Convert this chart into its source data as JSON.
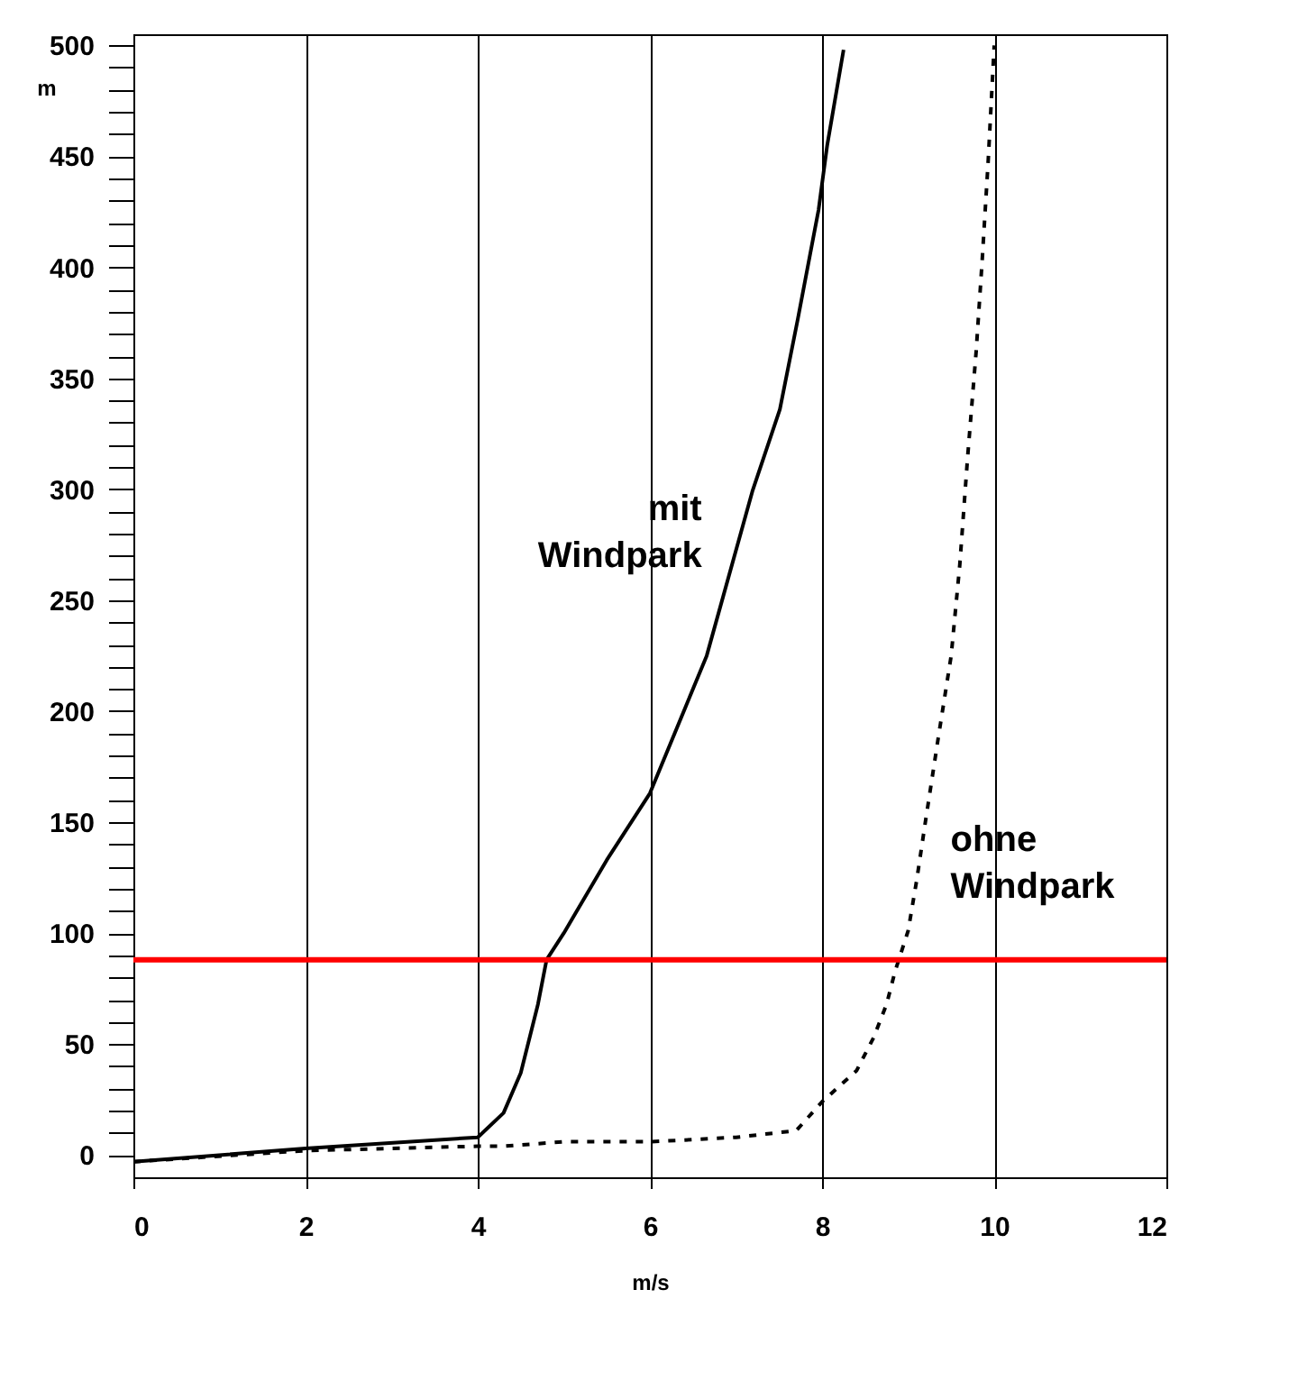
{
  "chart_data": {
    "type": "line",
    "xlabel": "m/s",
    "ylabel": "m",
    "xlim": [
      0,
      12
    ],
    "xticks": [
      0,
      2,
      4,
      6,
      8,
      10,
      12
    ],
    "ylim": [
      -10,
      505
    ],
    "yticks": [
      0,
      {
        "value": 10,
        "label": null
      },
      {
        "value": 20,
        "label": null
      },
      {
        "value": 30,
        "label": null
      },
      {
        "value": 40,
        "label": null
      },
      50,
      {
        "value": 60,
        "label": null
      },
      {
        "value": 70,
        "label": null
      },
      {
        "value": 80,
        "label": null
      },
      {
        "value": 90,
        "label": null
      },
      100,
      {
        "value": 110,
        "label": null
      },
      {
        "value": 120,
        "label": null
      },
      {
        "value": 130,
        "label": null
      },
      {
        "value": 140,
        "label": null
      },
      150,
      {
        "value": 160,
        "label": null
      },
      {
        "value": 170,
        "label": null
      },
      {
        "value": 180,
        "label": null
      },
      {
        "value": 190,
        "label": null
      },
      200,
      {
        "value": 210,
        "label": null
      },
      {
        "value": 220,
        "label": null
      },
      {
        "value": 230,
        "label": null
      },
      {
        "value": 240,
        "label": null
      },
      250,
      {
        "value": 260,
        "label": null
      },
      {
        "value": 270,
        "label": null
      },
      {
        "value": 280,
        "label": null
      },
      {
        "value": 290,
        "label": null
      },
      300,
      {
        "value": 310,
        "label": null
      },
      {
        "value": 320,
        "label": null
      },
      {
        "value": 330,
        "label": null
      },
      {
        "value": 340,
        "label": null
      },
      350,
      {
        "value": 360,
        "label": null
      },
      {
        "value": 370,
        "label": null
      },
      {
        "value": 380,
        "label": null
      },
      {
        "value": 390,
        "label": null
      },
      400,
      {
        "value": 410,
        "label": null
      },
      {
        "value": 420,
        "label": null
      },
      {
        "value": 430,
        "label": null
      },
      {
        "value": 440,
        "label": null
      },
      450,
      {
        "value": 460,
        "label": null
      },
      {
        "value": 470,
        "label": null
      },
      {
        "value": 480,
        "label": null
      },
      {
        "value": 490,
        "label": null
      },
      500
    ],
    "grid": "x",
    "marker": "none",
    "series": [
      {
        "name": "mit Windpark",
        "color": "#000000",
        "line_style": "solid",
        "x": [
          0,
          2,
          4,
          4.3,
          4.5,
          4.7,
          4.8,
          5.0,
          5.5,
          6,
          6.66,
          7.19,
          7.51,
          7.72,
          7.96,
          8.06,
          8.25
        ],
        "values": [
          -3,
          3,
          8,
          19,
          37,
          68,
          88,
          100,
          133,
          163,
          225,
          299,
          336,
          377,
          426,
          455,
          498
        ]
      },
      {
        "name": "ohne Windpark",
        "color": "#000000",
        "line_style": "dashed",
        "x": [
          0,
          2,
          4,
          4.3,
          5,
          6,
          7,
          7.7,
          8,
          8.4,
          8.6,
          8.75,
          8.85,
          9.0,
          9.1,
          9.2,
          9.35,
          9.5,
          9.6,
          9.69,
          9.79,
          9.86,
          9.93,
          10.0
        ],
        "values": [
          -3,
          2,
          4,
          4,
          6,
          6,
          8,
          11,
          24,
          38,
          53,
          68,
          83,
          101,
          124,
          150,
          188,
          225,
          266,
          314,
          362,
          403,
          448,
          500
        ]
      }
    ],
    "ref_lines": [
      {
        "axis": "y",
        "value": 88,
        "color": "#ff0000",
        "line_style": "solid"
      }
    ]
  }
}
